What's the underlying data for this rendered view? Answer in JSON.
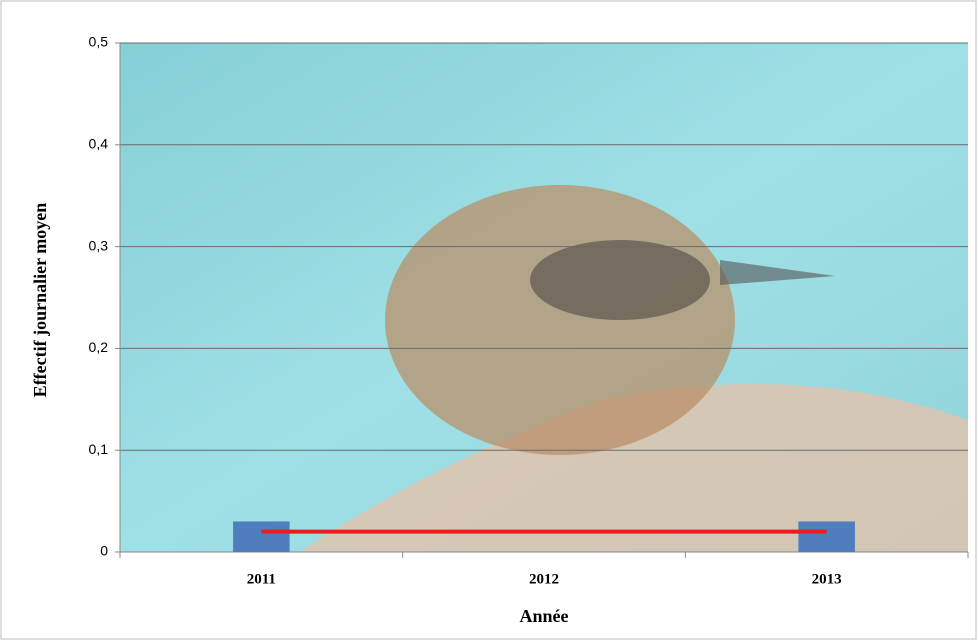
{
  "chart_data": {
    "type": "bar",
    "x_label": "Année",
    "y_label": "Effectif journalier moyen",
    "categories": [
      "2011",
      "2012",
      "2013"
    ],
    "values": [
      0.03,
      0,
      0.03
    ],
    "color": "#4f7dbd",
    "trend_line": {
      "values": [
        0.02,
        0.02,
        0.02
      ],
      "color": "#ee1c1c"
    },
    "ylim": [
      0,
      0.5
    ],
    "yticks": [
      0,
      {
        "value": 0.1,
        "label": "0,1"
      },
      {
        "value": 0.2,
        "label": "0,2"
      },
      {
        "value": 0.3,
        "label": "0,3"
      },
      {
        "value": 0.4,
        "label": "0,4"
      },
      {
        "value": 0.5,
        "label": "0,5"
      }
    ],
    "grid": true
  }
}
